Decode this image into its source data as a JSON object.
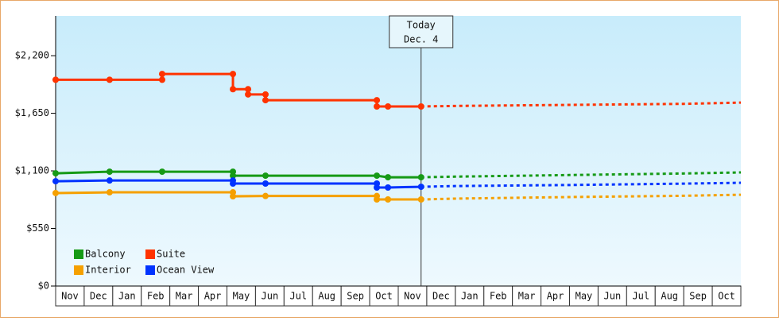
{
  "chart_data": {
    "type": "line",
    "categories": [
      "Nov",
      "Dec",
      "Jan",
      "Feb",
      "Mar",
      "Apr",
      "May",
      "Jun",
      "Jul",
      "Aug",
      "Sep",
      "Oct",
      "Nov",
      "Dec",
      "Jan",
      "Feb",
      "Mar",
      "Apr",
      "May",
      "Jun",
      "Jul",
      "Aug",
      "Sep",
      "Oct"
    ],
    "xlim": [
      0,
      24
    ],
    "ylim": [
      0,
      2580
    ],
    "yticks": [
      {
        "value": 0,
        "label": "$0"
      },
      {
        "value": 550,
        "label": "$550"
      },
      {
        "value": 1100,
        "label": "$1,100"
      },
      {
        "value": 1650,
        "label": "$1,650"
      },
      {
        "value": 2200,
        "label": "$2,200"
      }
    ],
    "legend": "lower left",
    "annotation": {
      "x": 12.8,
      "text": [
        "Today",
        "Dec. 4"
      ]
    },
    "series": [
      {
        "name": "Balcony",
        "color": "#169a16",
        "x": [
          0,
          1.89,
          3.73,
          6.21,
          6.21,
          7.35,
          11.25,
          11.64,
          12.8
        ],
        "values": [
          1077,
          1092,
          1092,
          1092,
          1054,
          1054,
          1054,
          1039,
          1039
        ],
        "forecast_x": [
          12.8,
          14,
          18,
          22,
          24
        ],
        "forecast_values": [
          1039,
          1045,
          1060,
          1075,
          1085
        ]
      },
      {
        "name": "Suite",
        "color": "#ff3300",
        "x": [
          0,
          1.89,
          3.73,
          3.73,
          6.21,
          6.21,
          6.74,
          6.74,
          7.35,
          7.35,
          11.25,
          11.25,
          11.64,
          12.8
        ],
        "values": [
          1970,
          1970,
          1970,
          2025,
          2025,
          1880,
          1880,
          1830,
          1830,
          1775,
          1775,
          1715,
          1715,
          1715
        ],
        "forecast_x": [
          12.8,
          14,
          18,
          22,
          24
        ],
        "forecast_values": [
          1715,
          1720,
          1730,
          1740,
          1752
        ]
      },
      {
        "name": "Interior",
        "color": "#f5a000",
        "x": [
          0,
          1.89,
          6.21,
          6.21,
          7.35,
          11.25,
          11.25,
          11.64,
          12.8
        ],
        "values": [
          888,
          895,
          895,
          857,
          860,
          860,
          827,
          827,
          827
        ],
        "forecast_x": [
          12.8,
          14,
          18,
          22,
          24
        ],
        "forecast_values": [
          827,
          835,
          850,
          862,
          872
        ]
      },
      {
        "name": "Ocean View",
        "color": "#0033ff",
        "x": [
          0,
          1.89,
          6.21,
          6.21,
          7.35,
          11.25,
          11.25,
          11.64,
          12.8
        ],
        "values": [
          1001,
          1008,
          1008,
          979,
          979,
          979,
          941,
          941,
          948
        ],
        "forecast_x": [
          12.8,
          14,
          18,
          22,
          24
        ],
        "forecast_values": [
          948,
          955,
          965,
          978,
          986
        ]
      }
    ]
  }
}
